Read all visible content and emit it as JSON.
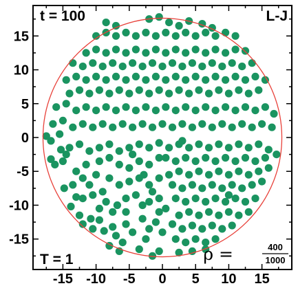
{
  "chart_data": {
    "type": "scatter",
    "title": "",
    "xlabel": "",
    "ylabel": "",
    "xlim": [
      -19.5,
      19.5
    ],
    "ylim": [
      -19.5,
      19.5
    ],
    "x_ticks": [
      -15,
      -10,
      -5,
      0,
      5,
      10,
      15
    ],
    "y_ticks": [
      -15,
      -10,
      -5,
      0,
      5,
      10,
      15
    ],
    "x_tick_labels": [
      "-15",
      "-10",
      "-5",
      "0",
      "5",
      "10",
      "15"
    ],
    "y_tick_labels": [
      "-15",
      "-10",
      "-5",
      "0",
      "5",
      "10",
      "15"
    ],
    "grid": false,
    "boundary_circle": {
      "center": [
        0,
        0
      ],
      "radius": 18.0,
      "color": "#e8413a"
    },
    "point_color": "#1a9460",
    "annotations": {
      "time": "t = 100",
      "potential": "L-J",
      "temperature": "T = 1",
      "density_symbol": "ρ =",
      "density_numerator": "400",
      "density_denominator": "1000"
    },
    "points": [
      [
        -17.5,
        0.2
      ],
      [
        -16.8,
        -0.5
      ],
      [
        -16.8,
        -3.2
      ],
      [
        -16.2,
        -4.0
      ],
      [
        -15.3,
        -1.8
      ],
      [
        -15.0,
        -3.5
      ],
      [
        -14.5,
        -2.5
      ],
      [
        -16.5,
        2.0
      ],
      [
        -15.5,
        0.5
      ],
      [
        -14.8,
        -7.5
      ],
      [
        -13.5,
        -7.0
      ],
      [
        -13.0,
        -8.8
      ],
      [
        -12.0,
        -9.0
      ],
      [
        -13.8,
        -10.2
      ],
      [
        -12.5,
        -11.5
      ],
      [
        -12.0,
        -12.8
      ],
      [
        -10.8,
        -12.0
      ],
      [
        -10.5,
        -13.5
      ],
      [
        -9.5,
        -12.2
      ],
      [
        -8.8,
        -13.8
      ],
      [
        -7.5,
        -13.2
      ],
      [
        -7.0,
        -14.5
      ],
      [
        -6.0,
        -15.5
      ],
      [
        -5.5,
        -12.8
      ],
      [
        -6.5,
        -16.8
      ],
      [
        -8.0,
        -16.0
      ],
      [
        -4.5,
        -14.0
      ],
      [
        -3.5,
        -16.5
      ],
      [
        -2.5,
        -15.0
      ],
      [
        -1.5,
        -17.5
      ],
      [
        -0.5,
        -16.8
      ],
      [
        -2.0,
        -13.5
      ],
      [
        -3.0,
        -12.0
      ],
      [
        -1.0,
        -12.5
      ],
      [
        0.0,
        -14.0
      ],
      [
        -5.5,
        -11.0
      ],
      [
        -6.8,
        -10.0
      ],
      [
        -5.5,
        -9.0
      ],
      [
        -4.0,
        -8.5
      ],
      [
        -3.0,
        -10.0
      ],
      [
        -2.0,
        -9.5
      ],
      [
        -0.5,
        -9.0
      ],
      [
        0.5,
        -10.5
      ],
      [
        -10.5,
        -8.5
      ],
      [
        -9.0,
        -8.0
      ],
      [
        -8.5,
        -9.5
      ],
      [
        -9.5,
        -10.5
      ],
      [
        -7.5,
        -11.0
      ],
      [
        -11.0,
        -7.0
      ],
      [
        -12.0,
        -6.0
      ],
      [
        -10.0,
        -5.5
      ],
      [
        -8.0,
        -6.0
      ],
      [
        -6.5,
        -7.0
      ],
      [
        -5.0,
        -6.5
      ],
      [
        -3.5,
        -6.0
      ],
      [
        -2.0,
        -7.0
      ],
      [
        -0.5,
        -6.0
      ],
      [
        -13.0,
        -5.0
      ],
      [
        -11.5,
        -4.0
      ],
      [
        -9.5,
        -3.5
      ],
      [
        -8.0,
        -3.0
      ],
      [
        -6.5,
        -4.0
      ],
      [
        -5.0,
        -4.5
      ],
      [
        -3.5,
        -3.5
      ],
      [
        -2.0,
        -4.0
      ],
      [
        -0.5,
        -3.0
      ],
      [
        -14.0,
        -1.5
      ],
      [
        -12.5,
        -1.0
      ],
      [
        -11.0,
        -2.0
      ],
      [
        -9.5,
        -1.5
      ],
      [
        -8.0,
        -1.0
      ],
      [
        -6.5,
        -2.0
      ],
      [
        -5.0,
        -1.5
      ],
      [
        -3.5,
        -1.0
      ],
      [
        -2.0,
        -1.5
      ],
      [
        -0.5,
        -0.8
      ],
      [
        1.0,
        -1.5
      ],
      [
        2.5,
        -1.0
      ],
      [
        4.0,
        -1.5
      ],
      [
        5.5,
        -1.0
      ],
      [
        7.0,
        -1.5
      ],
      [
        8.5,
        -1.0
      ],
      [
        10.0,
        -1.5
      ],
      [
        11.5,
        -1.0
      ],
      [
        13.0,
        -1.5
      ],
      [
        14.5,
        -1.0
      ],
      [
        16.0,
        -1.8
      ],
      [
        17.2,
        -2.5
      ],
      [
        15.5,
        -3.0
      ],
      [
        14.0,
        -3.5
      ],
      [
        12.5,
        -3.0
      ],
      [
        11.0,
        -3.5
      ],
      [
        9.5,
        -3.0
      ],
      [
        8.0,
        -3.5
      ],
      [
        6.5,
        -3.0
      ],
      [
        5.0,
        -3.5
      ],
      [
        3.5,
        -3.0
      ],
      [
        2.0,
        -3.5
      ],
      [
        0.5,
        -3.0
      ],
      [
        1.0,
        -5.5
      ],
      [
        2.5,
        -5.0
      ],
      [
        4.0,
        -5.5
      ],
      [
        5.5,
        -5.0
      ],
      [
        7.0,
        -5.5
      ],
      [
        8.5,
        -5.0
      ],
      [
        10.0,
        -5.5
      ],
      [
        11.5,
        -5.0
      ],
      [
        13.0,
        -5.5
      ],
      [
        14.5,
        -5.0
      ],
      [
        16.0,
        -4.5
      ],
      [
        15.0,
        -6.5
      ],
      [
        13.5,
        -7.0
      ],
      [
        12.0,
        -7.5
      ],
      [
        10.5,
        -7.0
      ],
      [
        9.0,
        -7.5
      ],
      [
        7.5,
        -7.0
      ],
      [
        6.0,
        -7.5
      ],
      [
        4.5,
        -7.0
      ],
      [
        3.0,
        -7.5
      ],
      [
        1.5,
        -7.0
      ],
      [
        2.0,
        -9.0
      ],
      [
        3.5,
        -9.5
      ],
      [
        5.0,
        -9.0
      ],
      [
        6.5,
        -9.5
      ],
      [
        8.0,
        -9.0
      ],
      [
        9.5,
        -9.5
      ],
      [
        11.0,
        -9.0
      ],
      [
        12.5,
        -9.5
      ],
      [
        14.0,
        -9.0
      ],
      [
        13.0,
        -11.0
      ],
      [
        11.5,
        -11.5
      ],
      [
        10.0,
        -11.0
      ],
      [
        8.5,
        -11.5
      ],
      [
        7.0,
        -11.0
      ],
      [
        5.5,
        -11.5
      ],
      [
        4.0,
        -11.0
      ],
      [
        2.5,
        -11.5
      ],
      [
        3.0,
        -13.5
      ],
      [
        4.5,
        -13.0
      ],
      [
        6.0,
        -13.5
      ],
      [
        7.5,
        -13.0
      ],
      [
        9.0,
        -13.5
      ],
      [
        10.5,
        -13.0
      ],
      [
        8.0,
        -15.0
      ],
      [
        6.5,
        -15.5
      ],
      [
        5.0,
        -15.0
      ],
      [
        3.5,
        -15.5
      ],
      [
        2.0,
        -15.0
      ],
      [
        2.5,
        -17.0
      ],
      [
        4.5,
        -16.8
      ],
      [
        6.5,
        -16.5
      ],
      [
        -16.0,
        4.5
      ],
      [
        -14.5,
        5.0
      ],
      [
        -13.0,
        4.0
      ],
      [
        -11.5,
        4.5
      ],
      [
        -10.0,
        4.0
      ],
      [
        -8.5,
        4.5
      ],
      [
        -7.0,
        4.0
      ],
      [
        -5.5,
        4.5
      ],
      [
        -4.0,
        4.0
      ],
      [
        -2.5,
        4.5
      ],
      [
        -1.0,
        4.0
      ],
      [
        0.5,
        4.5
      ],
      [
        2.0,
        4.0
      ],
      [
        3.5,
        4.5
      ],
      [
        5.0,
        4.0
      ],
      [
        6.5,
        4.5
      ],
      [
        8.0,
        4.0
      ],
      [
        9.5,
        4.5
      ],
      [
        11.0,
        4.0
      ],
      [
        12.5,
        4.5
      ],
      [
        14.0,
        4.0
      ],
      [
        15.5,
        4.5
      ],
      [
        16.8,
        3.5
      ],
      [
        16.5,
        1.5
      ],
      [
        15.0,
        2.0
      ],
      [
        13.5,
        1.5
      ],
      [
        12.0,
        2.0
      ],
      [
        10.5,
        1.5
      ],
      [
        9.0,
        2.0
      ],
      [
        7.5,
        1.5
      ],
      [
        6.0,
        2.0
      ],
      [
        4.5,
        1.5
      ],
      [
        3.0,
        2.0
      ],
      [
        1.5,
        1.5
      ],
      [
        0.0,
        2.0
      ],
      [
        -1.5,
        1.5
      ],
      [
        -3.0,
        2.0
      ],
      [
        -4.5,
        1.5
      ],
      [
        -6.0,
        2.0
      ],
      [
        -7.5,
        1.5
      ],
      [
        -9.0,
        2.0
      ],
      [
        -10.5,
        1.5
      ],
      [
        -12.0,
        2.0
      ],
      [
        -13.5,
        1.5
      ],
      [
        -15.0,
        2.5
      ],
      [
        -14.0,
        6.5
      ],
      [
        -12.5,
        7.0
      ],
      [
        -11.0,
        6.5
      ],
      [
        -9.5,
        7.0
      ],
      [
        -8.0,
        6.5
      ],
      [
        -6.5,
        7.0
      ],
      [
        -5.0,
        6.5
      ],
      [
        -3.5,
        7.0
      ],
      [
        -2.0,
        6.5
      ],
      [
        -0.5,
        7.0
      ],
      [
        1.0,
        6.5
      ],
      [
        2.5,
        7.0
      ],
      [
        4.0,
        6.5
      ],
      [
        5.5,
        7.0
      ],
      [
        7.0,
        6.5
      ],
      [
        8.5,
        7.0
      ],
      [
        10.0,
        6.5
      ],
      [
        11.5,
        7.0
      ],
      [
        13.0,
        6.5
      ],
      [
        14.5,
        7.0
      ],
      [
        15.5,
        8.5
      ],
      [
        14.0,
        9.0
      ],
      [
        12.5,
        8.5
      ],
      [
        11.0,
        9.0
      ],
      [
        9.5,
        8.5
      ],
      [
        8.0,
        9.0
      ],
      [
        6.5,
        8.5
      ],
      [
        5.0,
        9.0
      ],
      [
        3.5,
        8.5
      ],
      [
        2.0,
        9.0
      ],
      [
        0.5,
        8.5
      ],
      [
        -1.0,
        9.0
      ],
      [
        -2.5,
        8.5
      ],
      [
        -4.0,
        9.0
      ],
      [
        -5.5,
        8.5
      ],
      [
        -7.0,
        9.0
      ],
      [
        -8.5,
        8.5
      ],
      [
        -10.0,
        9.0
      ],
      [
        -11.5,
        8.5
      ],
      [
        -13.0,
        9.0
      ],
      [
        -14.5,
        8.5
      ],
      [
        -13.5,
        11.0
      ],
      [
        -12.0,
        10.5
      ],
      [
        -10.5,
        11.0
      ],
      [
        -9.0,
        10.5
      ],
      [
        -7.5,
        11.0
      ],
      [
        -6.0,
        10.5
      ],
      [
        -4.5,
        11.0
      ],
      [
        -3.0,
        10.5
      ],
      [
        -1.5,
        11.0
      ],
      [
        0.0,
        10.5
      ],
      [
        1.5,
        11.0
      ],
      [
        3.0,
        10.5
      ],
      [
        4.5,
        11.0
      ],
      [
        6.0,
        10.5
      ],
      [
        7.5,
        11.0
      ],
      [
        9.0,
        10.5
      ],
      [
        10.5,
        11.0
      ],
      [
        12.0,
        10.5
      ],
      [
        13.5,
        11.0
      ],
      [
        12.5,
        12.8
      ],
      [
        11.0,
        13.0
      ],
      [
        9.5,
        12.5
      ],
      [
        8.0,
        13.0
      ],
      [
        6.5,
        12.5
      ],
      [
        5.0,
        13.0
      ],
      [
        3.5,
        12.5
      ],
      [
        2.0,
        13.0
      ],
      [
        0.5,
        12.5
      ],
      [
        -1.0,
        13.0
      ],
      [
        -2.5,
        12.5
      ],
      [
        -4.0,
        13.0
      ],
      [
        -5.5,
        12.5
      ],
      [
        -7.0,
        13.0
      ],
      [
        -8.5,
        12.5
      ],
      [
        -10.0,
        13.0
      ],
      [
        -11.5,
        12.5
      ],
      [
        -10.0,
        15.0
      ],
      [
        -8.5,
        15.5
      ],
      [
        -7.0,
        15.0
      ],
      [
        -5.5,
        15.5
      ],
      [
        -4.0,
        15.0
      ],
      [
        -2.5,
        15.5
      ],
      [
        -1.0,
        15.0
      ],
      [
        0.5,
        15.5
      ],
      [
        2.0,
        15.0
      ],
      [
        3.5,
        15.5
      ],
      [
        5.0,
        15.0
      ],
      [
        6.5,
        15.5
      ],
      [
        8.0,
        15.0
      ],
      [
        9.5,
        15.5
      ],
      [
        11.0,
        15.0
      ],
      [
        -8.5,
        17.0
      ],
      [
        -7.0,
        16.5
      ],
      [
        -2.0,
        17.5
      ],
      [
        -0.5,
        17.8
      ],
      [
        1.0,
        17.0
      ],
      [
        2.5,
        16.5
      ],
      [
        4.0,
        17.2
      ],
      [
        6.0,
        16.8
      ],
      [
        7.5,
        16.2
      ],
      [
        -2.8,
        -5.5
      ],
      [
        -4.5,
        -2.5
      ],
      [
        1.5,
        -12.8
      ],
      [
        -0.5,
        -11.0
      ],
      [
        -1.5,
        -8.0
      ],
      [
        3.0,
        -0.5
      ],
      [
        10.0,
        -8.5
      ]
    ]
  }
}
